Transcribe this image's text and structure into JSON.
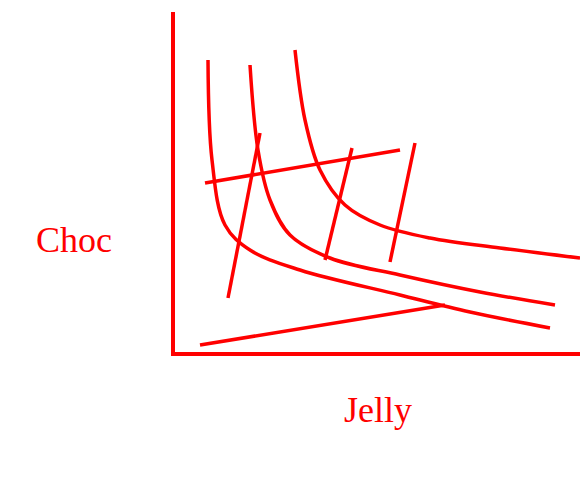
{
  "chart_data": {
    "type": "line",
    "x_label": "Jelly",
    "y_label": "Choc",
    "color": "#ff0000",
    "line_style": "solid",
    "grid": false,
    "tick_labels": false,
    "xlim": [
      0,
      40.5
    ],
    "ylim": [
      0,
      34
    ],
    "series": [
      {
        "x": [
          3.3,
          3.7,
          5,
          7.5,
          12.5,
          22.5,
          29.5,
          37.5
        ],
        "values": [
          29.2,
          19.2,
          12.7,
          10.2,
          8.2,
          5.7,
          4,
          2.4
        ]
      },
      {
        "x": [
          7.5,
          8.3,
          9.5,
          11.5,
          15.5,
          22.5,
          30.5,
          38
        ],
        "values": [
          28.7,
          20.2,
          15.2,
          11.7,
          9.4,
          7.7,
          6,
          4.7
        ]
      },
      {
        "x": [
          12,
          13,
          14.5,
          17,
          20.5,
          25.5,
          32.5,
          40.5
        ],
        "values": [
          30.2,
          23.2,
          18.2,
          14.7,
          12.7,
          11.4,
          10.4,
          9.4
        ]
      },
      {
        "x": [
          3,
          22.5
        ],
        "values": [
          16.9,
          20.2
        ]
      },
      {
        "x": [
          5.3,
          8.5
        ],
        "values": [
          5.4,
          21.9
        ]
      },
      {
        "x": [
          15,
          17.7
        ],
        "values": [
          9.2,
          20.4
        ]
      },
      {
        "x": [
          21.5,
          24
        ],
        "values": [
          9,
          20.9
        ]
      },
      {
        "x": [
          2.5,
          27
        ],
        "values": [
          0.7,
          4.7
        ]
      }
    ]
  }
}
